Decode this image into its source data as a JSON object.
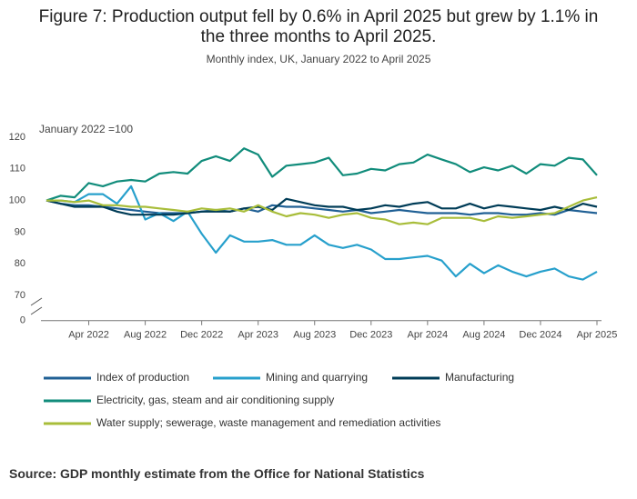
{
  "chart_data": {
    "type": "line",
    "title": "Figure 7: Production output fell by 0.6% in April 2025 but grew by 1.1% in the three months to April 2025.",
    "subtitle": "Monthly index, UK, January 2022 to April 2025",
    "y_label": "January 2022 =100",
    "source": "Source: GDP monthly estimate from the Office for National Statistics",
    "categories": [
      null,
      null,
      null,
      "Apr 2022",
      null,
      null,
      null,
      "Aug 2022",
      null,
      null,
      null,
      "Dec 2022",
      null,
      null,
      null,
      "Apr 2023",
      null,
      null,
      null,
      "Aug 2023",
      null,
      null,
      null,
      "Dec 2023",
      null,
      null,
      null,
      "Apr 2024",
      null,
      null,
      null,
      "Aug 2024",
      null,
      null,
      null,
      "Dec 2024",
      null,
      null,
      null,
      "Apr 2025"
    ],
    "ylim": [
      62,
      120
    ],
    "yticks": [
      0,
      70,
      80,
      90,
      100,
      110,
      120
    ],
    "axis_break": true,
    "grid": false,
    "series": [
      {
        "name": "Index of production",
        "color": "#206095",
        "values": [
          100,
          99,
          98.5,
          98.5,
          98,
          97.5,
          97,
          96.5,
          96,
          96,
          96,
          96.5,
          97,
          96.5,
          97.5,
          96.5,
          98.5,
          98,
          98,
          97.5,
          97,
          96.5,
          97,
          96,
          96.5,
          97,
          96.5,
          96,
          96,
          96,
          95.5,
          96,
          96,
          95.5,
          95.5,
          96,
          95.5,
          97,
          96.5,
          96
        ]
      },
      {
        "name": "Mining and quarrying",
        "color": "#27a0cc",
        "values": [
          100,
          100,
          99.5,
          102,
          102,
          99,
          104.5,
          94,
          96,
          93.5,
          96.5,
          89.5,
          83.5,
          89,
          87,
          87,
          87.5,
          86,
          86,
          89,
          86,
          85,
          86,
          84.5,
          81.5,
          81.5,
          82,
          82.5,
          81,
          76,
          80,
          77,
          79.5,
          77.5,
          76,
          77.5,
          78.5,
          76,
          75,
          77.5
        ]
      },
      {
        "name": "Manufacturing",
        "color": "#003c57",
        "values": [
          100,
          99,
          98,
          98,
          98,
          96.5,
          95.5,
          95.5,
          95.5,
          95.5,
          96,
          96.5,
          96.5,
          96.5,
          97.5,
          98,
          97,
          100.5,
          99.5,
          98.5,
          98,
          98,
          97,
          97.5,
          98.5,
          98,
          99,
          99.5,
          97.5,
          97.5,
          99,
          97.5,
          98.5,
          98,
          97.5,
          97,
          98,
          97,
          99,
          98
        ]
      },
      {
        "name": "Electricity, gas, steam and air conditioning supply",
        "color": "#118c7b",
        "values": [
          100,
          101.5,
          101,
          105.5,
          104.5,
          106,
          106.5,
          106,
          108.5,
          109,
          108.5,
          112.5,
          114,
          112.5,
          116.5,
          114.5,
          107.5,
          111,
          111.5,
          112,
          113.5,
          108,
          108.5,
          110,
          109.5,
          111.5,
          112,
          114.5,
          113,
          111.5,
          109,
          110.5,
          109.5,
          111,
          108.5,
          111.5,
          111,
          113.5,
          113,
          108
        ]
      },
      {
        "name": "Water supply; sewerage, waste management and remediation activities",
        "color": "#a8bd3a",
        "values": [
          100,
          100,
          99.5,
          100,
          98.5,
          98.5,
          98,
          98,
          97.5,
          97,
          96.5,
          97.5,
          97,
          97.5,
          96.5,
          98.5,
          96.5,
          95,
          96,
          95.5,
          94.5,
          95.5,
          96,
          94.5,
          94,
          92.5,
          93,
          92.5,
          94.5,
          94.5,
          94.5,
          93.5,
          95,
          94.5,
          95,
          95.5,
          96,
          98,
          100,
          101
        ]
      }
    ]
  }
}
